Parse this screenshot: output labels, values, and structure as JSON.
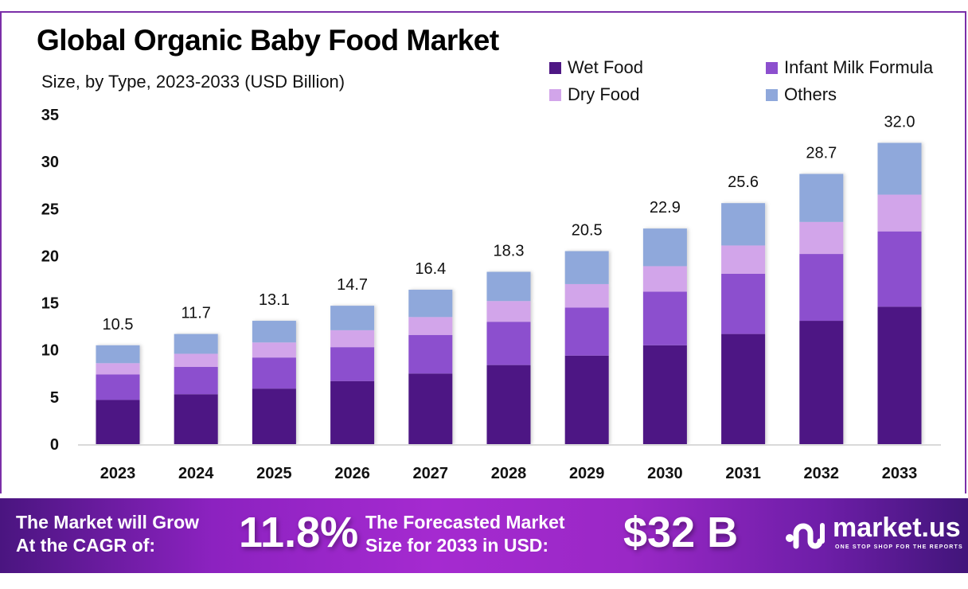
{
  "header": {
    "title": "Global Organic Baby Food Market",
    "subtitle": "Size, by Type, 2023-2033 (USD Billion)"
  },
  "colors": {
    "wet_food": "#4e1784",
    "infant_milk_formula": "#8c4fce",
    "dry_food": "#d2a5ea",
    "others": "#8fa8db",
    "frame": "#7b2fa8"
  },
  "chart_data": {
    "type": "bar",
    "stacked": true,
    "title": "Global Organic Baby Food Market",
    "subtitle": "Size, by Type, 2023-2033 (USD Billion)",
    "xlabel": "",
    "ylabel": "",
    "ylim": [
      0,
      35
    ],
    "yticks": [
      0,
      5,
      10,
      15,
      20,
      25,
      30,
      35
    ],
    "grid": false,
    "legend_position": "top-right",
    "categories": [
      "2023",
      "2024",
      "2025",
      "2026",
      "2027",
      "2028",
      "2029",
      "2030",
      "2031",
      "2032",
      "2033"
    ],
    "series": [
      {
        "name": "Wet Food",
        "color": "#4e1784",
        "values": [
          4.7,
          5.3,
          5.9,
          6.7,
          7.5,
          8.4,
          9.4,
          10.5,
          11.7,
          13.1,
          14.6
        ]
      },
      {
        "name": "Infant Milk Formula",
        "color": "#8c4fce",
        "values": [
          2.7,
          2.9,
          3.3,
          3.6,
          4.1,
          4.6,
          5.1,
          5.7,
          6.4,
          7.1,
          8.0
        ]
      },
      {
        "name": "Dry Food",
        "color": "#d2a5ea",
        "values": [
          1.2,
          1.4,
          1.6,
          1.8,
          1.9,
          2.2,
          2.5,
          2.7,
          3.0,
          3.4,
          3.9
        ]
      },
      {
        "name": "Others",
        "color": "#8fa8db",
        "values": [
          1.9,
          2.1,
          2.3,
          2.6,
          2.9,
          3.1,
          3.5,
          4.0,
          4.5,
          5.1,
          5.5
        ]
      }
    ],
    "totals": [
      10.5,
      11.7,
      13.1,
      14.7,
      16.4,
      18.3,
      20.5,
      22.9,
      25.6,
      28.7,
      32.0
    ],
    "total_labels": [
      "10.5",
      "11.7",
      "13.1",
      "14.7",
      "16.4",
      "18.3",
      "20.5",
      "22.9",
      "25.6",
      "28.7",
      "32.0"
    ]
  },
  "legend": [
    {
      "label": "Wet Food",
      "color": "#4e1784"
    },
    {
      "label": "Infant Milk Formula",
      "color": "#8c4fce"
    },
    {
      "label": "Dry Food",
      "color": "#d2a5ea"
    },
    {
      "label": "Others",
      "color": "#8fa8db"
    }
  ],
  "banner": {
    "cagr_text_line1": "The Market will Grow",
    "cagr_text_line2": "At the CAGR of:",
    "cagr_value": "11.8%",
    "forecast_text_line1": "The Forecasted Market",
    "forecast_text_line2": "Size for 2033 in USD:",
    "forecast_value": "$32 B",
    "logo_name": "market.us",
    "logo_tagline": "ONE STOP SHOP FOR THE REPORTS"
  }
}
